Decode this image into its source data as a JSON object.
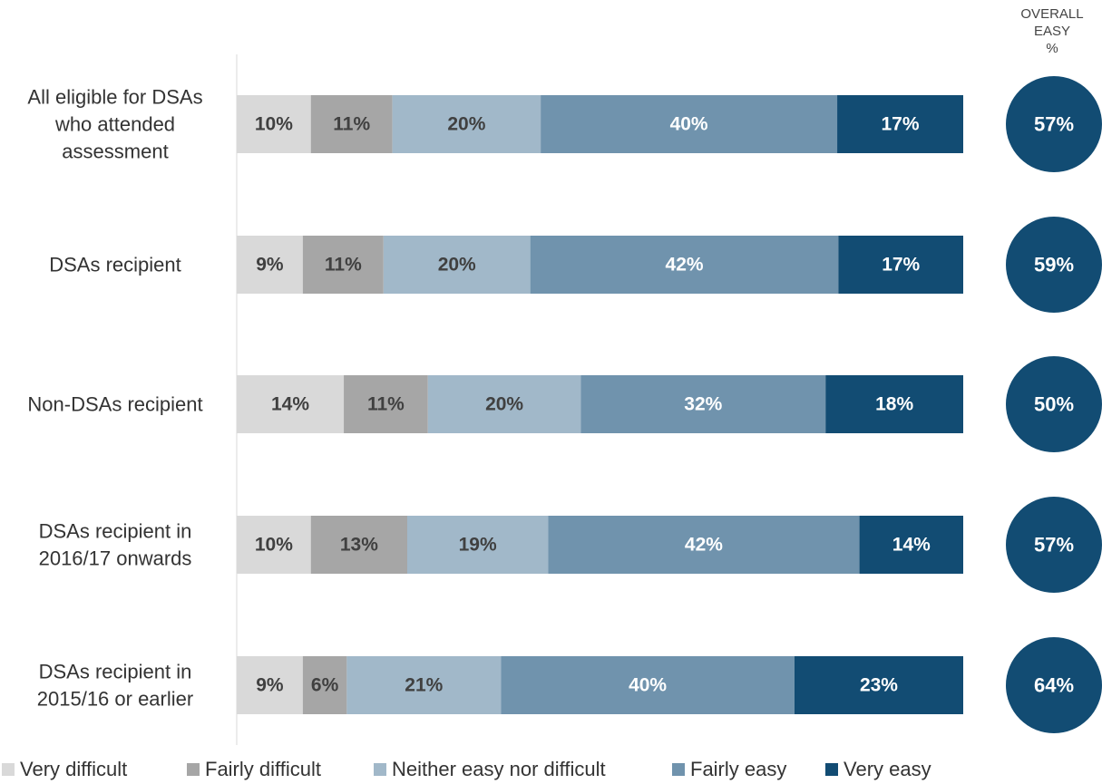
{
  "overall_header": [
    "OVERALL",
    "EASY",
    "%"
  ],
  "colors": {
    "very_difficult": "#d9d9d9",
    "fairly_difficult": "#a6a6a6",
    "neither": "#a1b8c9",
    "fairly_easy": "#7093ad",
    "very_easy": "#124c73",
    "label_dark": "#404040",
    "label_light": "#ffffff",
    "axis": "#d9d9d9"
  },
  "chart_data": {
    "type": "bar",
    "orientation": "horizontal",
    "stacked": true,
    "categories": [
      [
        "All eligible for DSAs",
        "who attended",
        "assessment"
      ],
      [
        "DSAs recipient"
      ],
      [
        "Non-DSAs recipient"
      ],
      [
        "DSAs recipient in",
        "2016/17 onwards"
      ],
      [
        "DSAs recipient in",
        "2015/16 or earlier"
      ]
    ],
    "series": [
      {
        "name": "Very difficult",
        "color": "#d9d9d9",
        "values": [
          10,
          9,
          14,
          10,
          9
        ],
        "labels": [
          "10%",
          "9%",
          "14%",
          "10%",
          "9%"
        ]
      },
      {
        "name": "Fairly difficult",
        "color": "#a6a6a6",
        "values": [
          11,
          11,
          11,
          13,
          6
        ],
        "labels": [
          "11%",
          "11%",
          "11%",
          "13%",
          "6%"
        ]
      },
      {
        "name": "Neither easy nor difficult",
        "color": "#a1b8c9",
        "values": [
          20,
          20,
          20,
          19,
          21
        ],
        "labels": [
          "20%",
          "20%",
          "20%",
          "19%",
          "21%"
        ]
      },
      {
        "name": "Fairly easy",
        "color": "#7093ad",
        "values": [
          40,
          42,
          32,
          42,
          40
        ],
        "labels": [
          "40%",
          "42%",
          "32%",
          "42%",
          "40%"
        ]
      },
      {
        "name": "Very easy",
        "color": "#124c73",
        "values": [
          17,
          17,
          18,
          14,
          23
        ],
        "labels": [
          "17%",
          "17%",
          "18%",
          "14%",
          "23%"
        ]
      }
    ],
    "overall_easy": {
      "values": [
        57,
        59,
        50,
        57,
        64
      ],
      "labels": [
        "57%",
        "59%",
        "50%",
        "57%",
        "64%"
      ]
    },
    "xlim": [
      0,
      100
    ],
    "legend": "bottom",
    "grid": false
  }
}
